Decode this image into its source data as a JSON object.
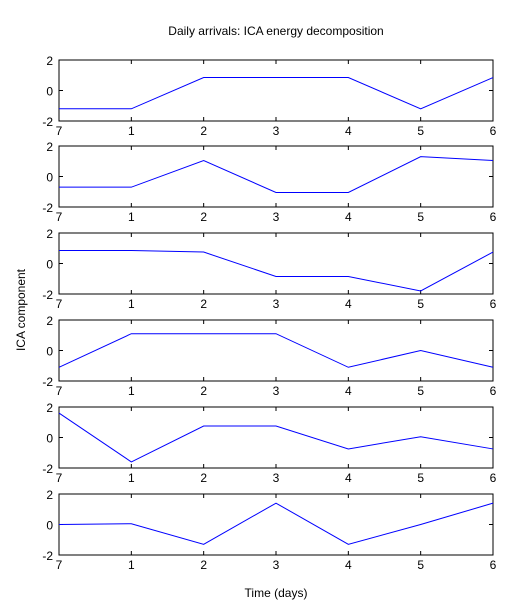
{
  "chart_data": {
    "type": "line",
    "title": "Daily arrivals: ICA energy decomposition",
    "xlabel": "Time (days)",
    "ylabel": "ICA component",
    "x_tick_labels": [
      "7",
      "1",
      "2",
      "3",
      "4",
      "5",
      "6"
    ],
    "xlim": [
      0,
      6
    ],
    "ylim": [
      -2,
      2
    ],
    "y_ticks": [
      2,
      0,
      -2
    ],
    "grid": false,
    "line_color": "#0000ff",
    "subplots": [
      {
        "values": [
          -1.2,
          -1.2,
          0.85,
          0.85,
          0.85,
          -1.2,
          0.85
        ]
      },
      {
        "values": [
          -0.7,
          -0.7,
          1.05,
          -1.05,
          -1.05,
          1.3,
          1.05
        ]
      },
      {
        "values": [
          0.85,
          0.85,
          0.75,
          -0.85,
          -0.85,
          -1.8,
          0.75
        ]
      },
      {
        "values": [
          -1.1,
          1.1,
          1.1,
          1.1,
          -1.1,
          0.0,
          -1.1
        ]
      },
      {
        "values": [
          1.6,
          -1.6,
          0.75,
          0.75,
          -0.75,
          0.05,
          -0.75
        ]
      },
      {
        "values": [
          0.0,
          0.05,
          -1.3,
          1.4,
          -1.3,
          0.0,
          1.4
        ]
      }
    ]
  }
}
